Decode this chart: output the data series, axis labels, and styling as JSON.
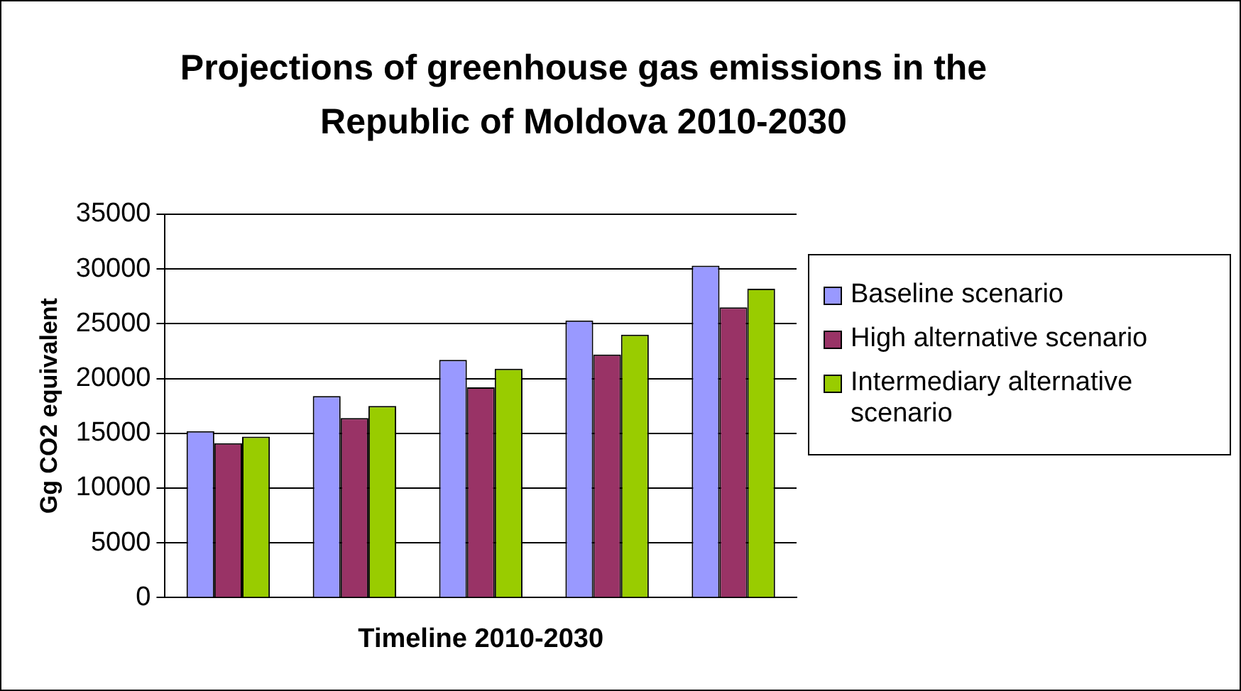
{
  "chart_data": {
    "type": "bar",
    "title": "Projections of greenhouse gas emissions in the Republic of Moldova 2010-2030",
    "xlabel": "Timeline 2010-2030",
    "ylabel": "Gg CO2 equivalent",
    "categories": [
      null,
      null,
      null,
      null,
      null
    ],
    "series": [
      {
        "name": "Baseline scenario",
        "color": "#9999ff",
        "values": [
          15200,
          18400,
          21700,
          25300,
          30300
        ]
      },
      {
        "name": "High alternative scenario",
        "color": "#993366",
        "values": [
          14100,
          16400,
          19200,
          22200,
          26500
        ]
      },
      {
        "name": "Intermediary alternative scenario",
        "color": "#99cc00",
        "values": [
          14700,
          17500,
          20900,
          24000,
          28200
        ]
      }
    ],
    "ylim": [
      0,
      35000
    ],
    "yticks": [
      0,
      5000,
      10000,
      15000,
      20000,
      25000,
      30000,
      35000
    ],
    "grid": "y",
    "legend": "right"
  }
}
